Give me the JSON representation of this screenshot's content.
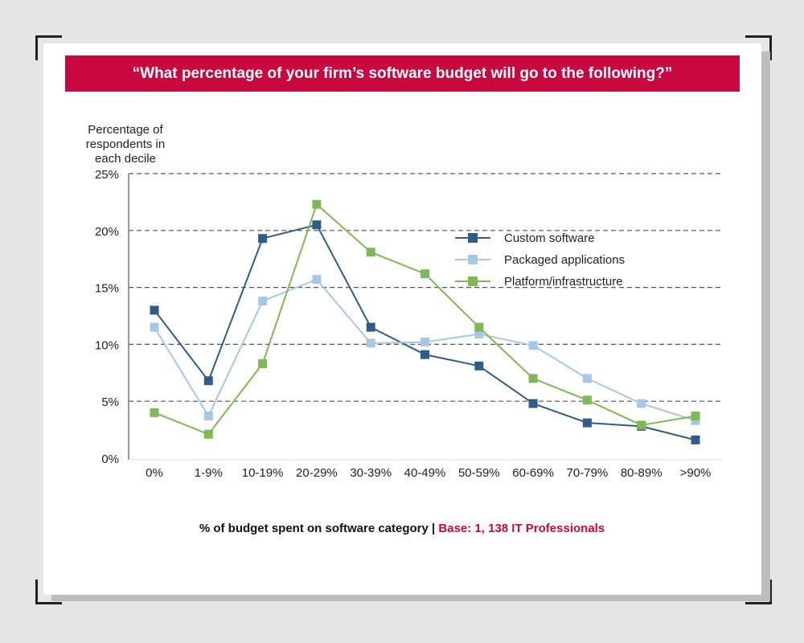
{
  "banner": {
    "title": "“What percentage of your firm’s software budget will go to the following?”"
  },
  "footer": {
    "label": "% of budget spent on software category |",
    "base": "Base: 1, 138 IT Professionals"
  },
  "colors": {
    "banner": "#c8083f",
    "custom": "#2f5d8a",
    "packaged": "#a8c6e6",
    "platform": "#7fb955"
  },
  "chart_data": {
    "type": "line",
    "ylabel": [
      "Percentage of",
      "respondents in",
      "each decile"
    ],
    "yticks": [
      "0%",
      "5%",
      "10%",
      "15%",
      "20%",
      "25%"
    ],
    "ylim": [
      0,
      25
    ],
    "grid": "dashed horizontal",
    "legend_position": "upper-right",
    "categories": [
      "0%",
      "1-9%",
      "10-19%",
      "20-29%",
      "30-39%",
      "40-49%",
      "50-59%",
      "60-69%",
      "70-79%",
      "80-89%",
      ">90%"
    ],
    "series": [
      {
        "name": "Custom software",
        "color": "#2f5d8a",
        "values": [
          13.0,
          6.8,
          19.3,
          20.5,
          11.5,
          9.1,
          8.1,
          4.8,
          3.1,
          2.8,
          1.6
        ]
      },
      {
        "name": "Packaged applications",
        "color": "#a8c6e6",
        "values": [
          11.5,
          3.7,
          13.8,
          15.7,
          10.1,
          10.2,
          10.9,
          9.9,
          7.0,
          4.8,
          3.3
        ]
      },
      {
        "name": "Platform/infrastructure",
        "color": "#7fb955",
        "values": [
          4.0,
          2.1,
          8.3,
          22.3,
          18.1,
          16.2,
          11.5,
          7.0,
          5.1,
          2.9,
          3.7
        ]
      }
    ]
  }
}
